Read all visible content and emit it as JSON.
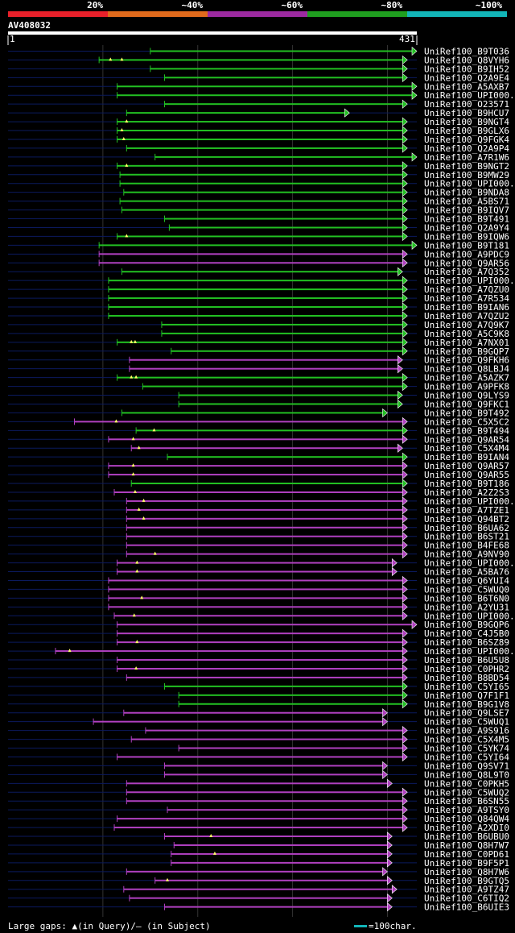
{
  "header": {
    "identity_bins": [
      {
        "label": "20%",
        "color": "#e8202a"
      },
      {
        "label": "~40%",
        "color": "#e06a1c"
      },
      {
        "label": "~60%",
        "color": "#9c2aa0"
      },
      {
        "label": "~80%",
        "color": "#1f9e1f"
      },
      {
        "label": "~100%",
        "color": "#12b5b8"
      }
    ],
    "query_id": "AV408032",
    "ruler_start": "1",
    "ruler_end": "431"
  },
  "query_length": 431,
  "colors": {
    "green": "#22c022",
    "magenta": "#b040c0",
    "gap_in_query": "#ffff66",
    "unaligned": "#0b1a5e",
    "grid": "#333333",
    "scale": "#12b5b8"
  },
  "hits": [
    {
      "name": "UniRef100_B9T036",
      "start": 150,
      "end": 431,
      "color": "green",
      "gaps": []
    },
    {
      "name": "UniRef100_Q8VYH6",
      "start": 96,
      "end": 421,
      "color": "green",
      "gaps": [
        108,
        120
      ]
    },
    {
      "name": "UniRef100_B9IH52",
      "start": 150,
      "end": 421,
      "color": "green",
      "gaps": []
    },
    {
      "name": "UniRef100_Q2A9E4",
      "start": 165,
      "end": 421,
      "color": "green",
      "gaps": []
    },
    {
      "name": "UniRef100_A5AXB7",
      "start": 115,
      "end": 431,
      "color": "green",
      "gaps": []
    },
    {
      "name": "UniRef100_UPI000..",
      "start": 115,
      "end": 431,
      "color": "green",
      "gaps": []
    },
    {
      "name": "UniRef100_O23571",
      "start": 165,
      "end": 421,
      "color": "green",
      "gaps": []
    },
    {
      "name": "UniRef100_B9HCU7",
      "start": 125,
      "end": 360,
      "color": "green",
      "gaps": []
    },
    {
      "name": "UniRef100_B9NGT4",
      "start": 115,
      "end": 421,
      "color": "green",
      "gaps": [
        125
      ]
    },
    {
      "name": "UniRef100_B9GLX6",
      "start": 115,
      "end": 421,
      "color": "green",
      "gaps": [
        120
      ]
    },
    {
      "name": "UniRef100_Q9FGK4",
      "start": 115,
      "end": 421,
      "color": "green",
      "gaps": [
        122
      ]
    },
    {
      "name": "UniRef100_Q2A9P4",
      "start": 125,
      "end": 421,
      "color": "green",
      "gaps": []
    },
    {
      "name": "UniRef100_A7R1W6",
      "start": 155,
      "end": 431,
      "color": "green",
      "gaps": []
    },
    {
      "name": "UniRef100_B9NGT2",
      "start": 115,
      "end": 421,
      "color": "green",
      "gaps": [
        125
      ]
    },
    {
      "name": "UniRef100_B9MW29",
      "start": 118,
      "end": 421,
      "color": "green",
      "gaps": []
    },
    {
      "name": "UniRef100_UPI000..",
      "start": 118,
      "end": 421,
      "color": "green",
      "gaps": []
    },
    {
      "name": "UniRef100_B9NDA8",
      "start": 122,
      "end": 421,
      "color": "green",
      "gaps": []
    },
    {
      "name": "UniRef100_A5BS71",
      "start": 118,
      "end": 421,
      "color": "green",
      "gaps": []
    },
    {
      "name": "UniRef100_B9IQV7",
      "start": 120,
      "end": 421,
      "color": "green",
      "gaps": []
    },
    {
      "name": "UniRef100_B9T491",
      "start": 165,
      "end": 421,
      "color": "green",
      "gaps": []
    },
    {
      "name": "UniRef100_Q2A9Y4",
      "start": 170,
      "end": 421,
      "color": "green",
      "gaps": []
    },
    {
      "name": "UniRef100_B9IQW6",
      "start": 115,
      "end": 421,
      "color": "green",
      "gaps": [
        125
      ]
    },
    {
      "name": "UniRef100_B9T181",
      "start": 96,
      "end": 431,
      "color": "green",
      "gaps": []
    },
    {
      "name": "UniRef100_A9PDC9",
      "start": 96,
      "end": 421,
      "color": "magenta",
      "gaps": []
    },
    {
      "name": "UniRef100_Q9AR56",
      "start": 96,
      "end": 421,
      "color": "magenta",
      "gaps": []
    },
    {
      "name": "UniRef100_A7Q352",
      "start": 120,
      "end": 416,
      "color": "green",
      "gaps": []
    },
    {
      "name": "UniRef100_UPI000..",
      "start": 106,
      "end": 421,
      "color": "green",
      "gaps": []
    },
    {
      "name": "UniRef100_A7QZU0",
      "start": 106,
      "end": 421,
      "color": "green",
      "gaps": []
    },
    {
      "name": "UniRef100_A7R534",
      "start": 106,
      "end": 421,
      "color": "green",
      "gaps": []
    },
    {
      "name": "UniRef100_B9IAN6",
      "start": 106,
      "end": 421,
      "color": "green",
      "gaps": []
    },
    {
      "name": "UniRef100_A7QZU2",
      "start": 106,
      "end": 421,
      "color": "green",
      "gaps": []
    },
    {
      "name": "UniRef100_A7Q9K7",
      "start": 162,
      "end": 421,
      "color": "green",
      "gaps": []
    },
    {
      "name": "UniRef100_A5C9K8",
      "start": 162,
      "end": 421,
      "color": "green",
      "gaps": []
    },
    {
      "name": "UniRef100_A7NX01",
      "start": 115,
      "end": 421,
      "color": "green",
      "gaps": [
        130,
        134
      ]
    },
    {
      "name": "UniRef100_B9GQP7",
      "start": 172,
      "end": 421,
      "color": "green",
      "gaps": []
    },
    {
      "name": "UniRef100_Q9FKH6",
      "start": 128,
      "end": 416,
      "color": "magenta",
      "gaps": []
    },
    {
      "name": "UniRef100_Q8LBJ4",
      "start": 128,
      "end": 416,
      "color": "magenta",
      "gaps": []
    },
    {
      "name": "UniRef100_A5AZK7",
      "start": 115,
      "end": 421,
      "color": "green",
      "gaps": [
        130,
        135
      ]
    },
    {
      "name": "UniRef100_A9PFK8",
      "start": 142,
      "end": 421,
      "color": "green",
      "gaps": []
    },
    {
      "name": "UniRef100_Q9LYS9",
      "start": 180,
      "end": 416,
      "color": "green",
      "gaps": []
    },
    {
      "name": "UniRef100_Q9FKC1",
      "start": 180,
      "end": 416,
      "color": "green",
      "gaps": []
    },
    {
      "name": "UniRef100_B9T492",
      "start": 120,
      "end": 400,
      "color": "green",
      "gaps": []
    },
    {
      "name": "UniRef100_C5X5C2",
      "start": 70,
      "end": 421,
      "color": "magenta",
      "gaps": [
        114
      ]
    },
    {
      "name": "UniRef100_B9T494",
      "start": 135,
      "end": 421,
      "color": "green",
      "gaps": [
        154
      ]
    },
    {
      "name": "UniRef100_Q9AR54",
      "start": 106,
      "end": 421,
      "color": "magenta",
      "gaps": [
        132
      ]
    },
    {
      "name": "UniRef100_C5X4M4",
      "start": 130,
      "end": 416,
      "color": "magenta",
      "gaps": [
        138
      ]
    },
    {
      "name": "UniRef100_B9IAN4",
      "start": 168,
      "end": 421,
      "color": "green",
      "gaps": []
    },
    {
      "name": "UniRef100_Q9AR57",
      "start": 106,
      "end": 421,
      "color": "magenta",
      "gaps": [
        132
      ]
    },
    {
      "name": "UniRef100_Q9AR55",
      "start": 106,
      "end": 421,
      "color": "magenta",
      "gaps": [
        132
      ]
    },
    {
      "name": "UniRef100_B9T186",
      "start": 130,
      "end": 421,
      "color": "green",
      "gaps": []
    },
    {
      "name": "UniRef100_A2Z2S3",
      "start": 112,
      "end": 421,
      "color": "magenta",
      "gaps": [
        134
      ]
    },
    {
      "name": "UniRef100_UPI000..",
      "start": 125,
      "end": 421,
      "color": "magenta",
      "gaps": [
        143
      ]
    },
    {
      "name": "UniRef100_A7TZE1",
      "start": 125,
      "end": 421,
      "color": "magenta",
      "gaps": [
        138
      ]
    },
    {
      "name": "UniRef100_Q94BT2",
      "start": 125,
      "end": 421,
      "color": "magenta",
      "gaps": [
        143
      ]
    },
    {
      "name": "UniRef100_B6UA62",
      "start": 125,
      "end": 421,
      "color": "magenta",
      "gaps": []
    },
    {
      "name": "UniRef100_B6ST21",
      "start": 125,
      "end": 421,
      "color": "magenta",
      "gaps": []
    },
    {
      "name": "UniRef100_B4FE68",
      "start": 125,
      "end": 421,
      "color": "magenta",
      "gaps": []
    },
    {
      "name": "UniRef100_A9NV90",
      "start": 125,
      "end": 421,
      "color": "magenta",
      "gaps": [
        155
      ]
    },
    {
      "name": "UniRef100_UPI000..",
      "start": 115,
      "end": 410,
      "color": "magenta",
      "gaps": [
        136
      ]
    },
    {
      "name": "UniRef100_A5BA76",
      "start": 115,
      "end": 410,
      "color": "magenta",
      "gaps": [
        136
      ]
    },
    {
      "name": "UniRef100_Q6YUI4",
      "start": 106,
      "end": 421,
      "color": "magenta",
      "gaps": []
    },
    {
      "name": "UniRef100_C5WUQ0",
      "start": 106,
      "end": 421,
      "color": "magenta",
      "gaps": []
    },
    {
      "name": "UniRef100_B6T6N0",
      "start": 106,
      "end": 421,
      "color": "magenta",
      "gaps": [
        141
      ]
    },
    {
      "name": "UniRef100_A2YU31",
      "start": 106,
      "end": 421,
      "color": "magenta",
      "gaps": []
    },
    {
      "name": "UniRef100_UPI000..",
      "start": 112,
      "end": 421,
      "color": "magenta",
      "gaps": [
        133
      ]
    },
    {
      "name": "UniRef100_B9GQP6",
      "start": 115,
      "end": 431,
      "color": "magenta",
      "gaps": []
    },
    {
      "name": "UniRef100_C4J5B0",
      "start": 115,
      "end": 421,
      "color": "magenta",
      "gaps": []
    },
    {
      "name": "UniRef100_B6SZ89",
      "start": 115,
      "end": 421,
      "color": "magenta",
      "gaps": [
        136
      ]
    },
    {
      "name": "UniRef100_UPI000..",
      "start": 50,
      "end": 421,
      "color": "magenta",
      "gaps": [
        65
      ]
    },
    {
      "name": "UniRef100_B6U5U8",
      "start": 115,
      "end": 421,
      "color": "magenta",
      "gaps": []
    },
    {
      "name": "UniRef100_C0PHR2",
      "start": 115,
      "end": 421,
      "color": "magenta",
      "gaps": [
        135
      ]
    },
    {
      "name": "UniRef100_B8BD54",
      "start": 125,
      "end": 421,
      "color": "magenta",
      "gaps": []
    },
    {
      "name": "UniRef100_C5YI65",
      "start": 165,
      "end": 421,
      "color": "green",
      "gaps": []
    },
    {
      "name": "UniRef100_Q7F1F1",
      "start": 180,
      "end": 421,
      "color": "green",
      "gaps": []
    },
    {
      "name": "UniRef100_B9G1V8",
      "start": 180,
      "end": 421,
      "color": "green",
      "gaps": []
    },
    {
      "name": "UniRef100_Q9LSE7",
      "start": 122,
      "end": 400,
      "color": "magenta",
      "gaps": []
    },
    {
      "name": "UniRef100_C5WUQ1",
      "start": 90,
      "end": 400,
      "color": "magenta",
      "gaps": []
    },
    {
      "name": "UniRef100_A9S916",
      "start": 145,
      "end": 421,
      "color": "magenta",
      "gaps": []
    },
    {
      "name": "UniRef100_C5X4M5",
      "start": 130,
      "end": 421,
      "color": "magenta",
      "gaps": []
    },
    {
      "name": "UniRef100_C5YK74",
      "start": 180,
      "end": 421,
      "color": "magenta",
      "gaps": []
    },
    {
      "name": "UniRef100_C5YI64",
      "start": 115,
      "end": 421,
      "color": "magenta",
      "gaps": []
    },
    {
      "name": "UniRef100_Q9SV71",
      "start": 165,
      "end": 400,
      "color": "magenta",
      "gaps": []
    },
    {
      "name": "UniRef100_Q8L9T0",
      "start": 165,
      "end": 400,
      "color": "magenta",
      "gaps": []
    },
    {
      "name": "UniRef100_C0PKH5",
      "start": 125,
      "end": 405,
      "color": "magenta",
      "gaps": []
    },
    {
      "name": "UniRef100_C5WUQ2",
      "start": 125,
      "end": 421,
      "color": "magenta",
      "gaps": []
    },
    {
      "name": "UniRef100_B6SN55",
      "start": 125,
      "end": 421,
      "color": "magenta",
      "gaps": []
    },
    {
      "name": "UniRef100_A9TSY0",
      "start": 168,
      "end": 421,
      "color": "magenta",
      "gaps": []
    },
    {
      "name": "UniRef100_Q84QW4",
      "start": 115,
      "end": 421,
      "color": "magenta",
      "gaps": []
    },
    {
      "name": "UniRef100_A2XDI0",
      "start": 112,
      "end": 421,
      "color": "magenta",
      "gaps": []
    },
    {
      "name": "UniRef100_B6UBU0",
      "start": 165,
      "end": 405,
      "color": "magenta",
      "gaps": [
        214
      ]
    },
    {
      "name": "UniRef100_Q8H7W7",
      "start": 175,
      "end": 405,
      "color": "magenta",
      "gaps": []
    },
    {
      "name": "UniRef100_C0PD61",
      "start": 172,
      "end": 405,
      "color": "magenta",
      "gaps": [
        218
      ]
    },
    {
      "name": "UniRef100_B9F5P1",
      "start": 172,
      "end": 405,
      "color": "magenta",
      "gaps": []
    },
    {
      "name": "UniRef100_Q8H7W6",
      "start": 125,
      "end": 400,
      "color": "magenta",
      "gaps": []
    },
    {
      "name": "UniRef100_B9GTQ5",
      "start": 155,
      "end": 405,
      "color": "magenta",
      "gaps": [
        168
      ]
    },
    {
      "name": "UniRef100_A9TZ47",
      "start": 122,
      "end": 410,
      "color": "magenta",
      "gaps": []
    },
    {
      "name": "UniRef100_C6TIQ2",
      "start": 128,
      "end": 405,
      "color": "magenta",
      "gaps": []
    },
    {
      "name": "UniRef100_B6UIE3",
      "start": 165,
      "end": 405,
      "color": "magenta",
      "gaps": []
    }
  ],
  "footer": {
    "legend_text": "Large gaps: ▲(in Query)/– (in Subject)",
    "scale_text": "=100char."
  }
}
